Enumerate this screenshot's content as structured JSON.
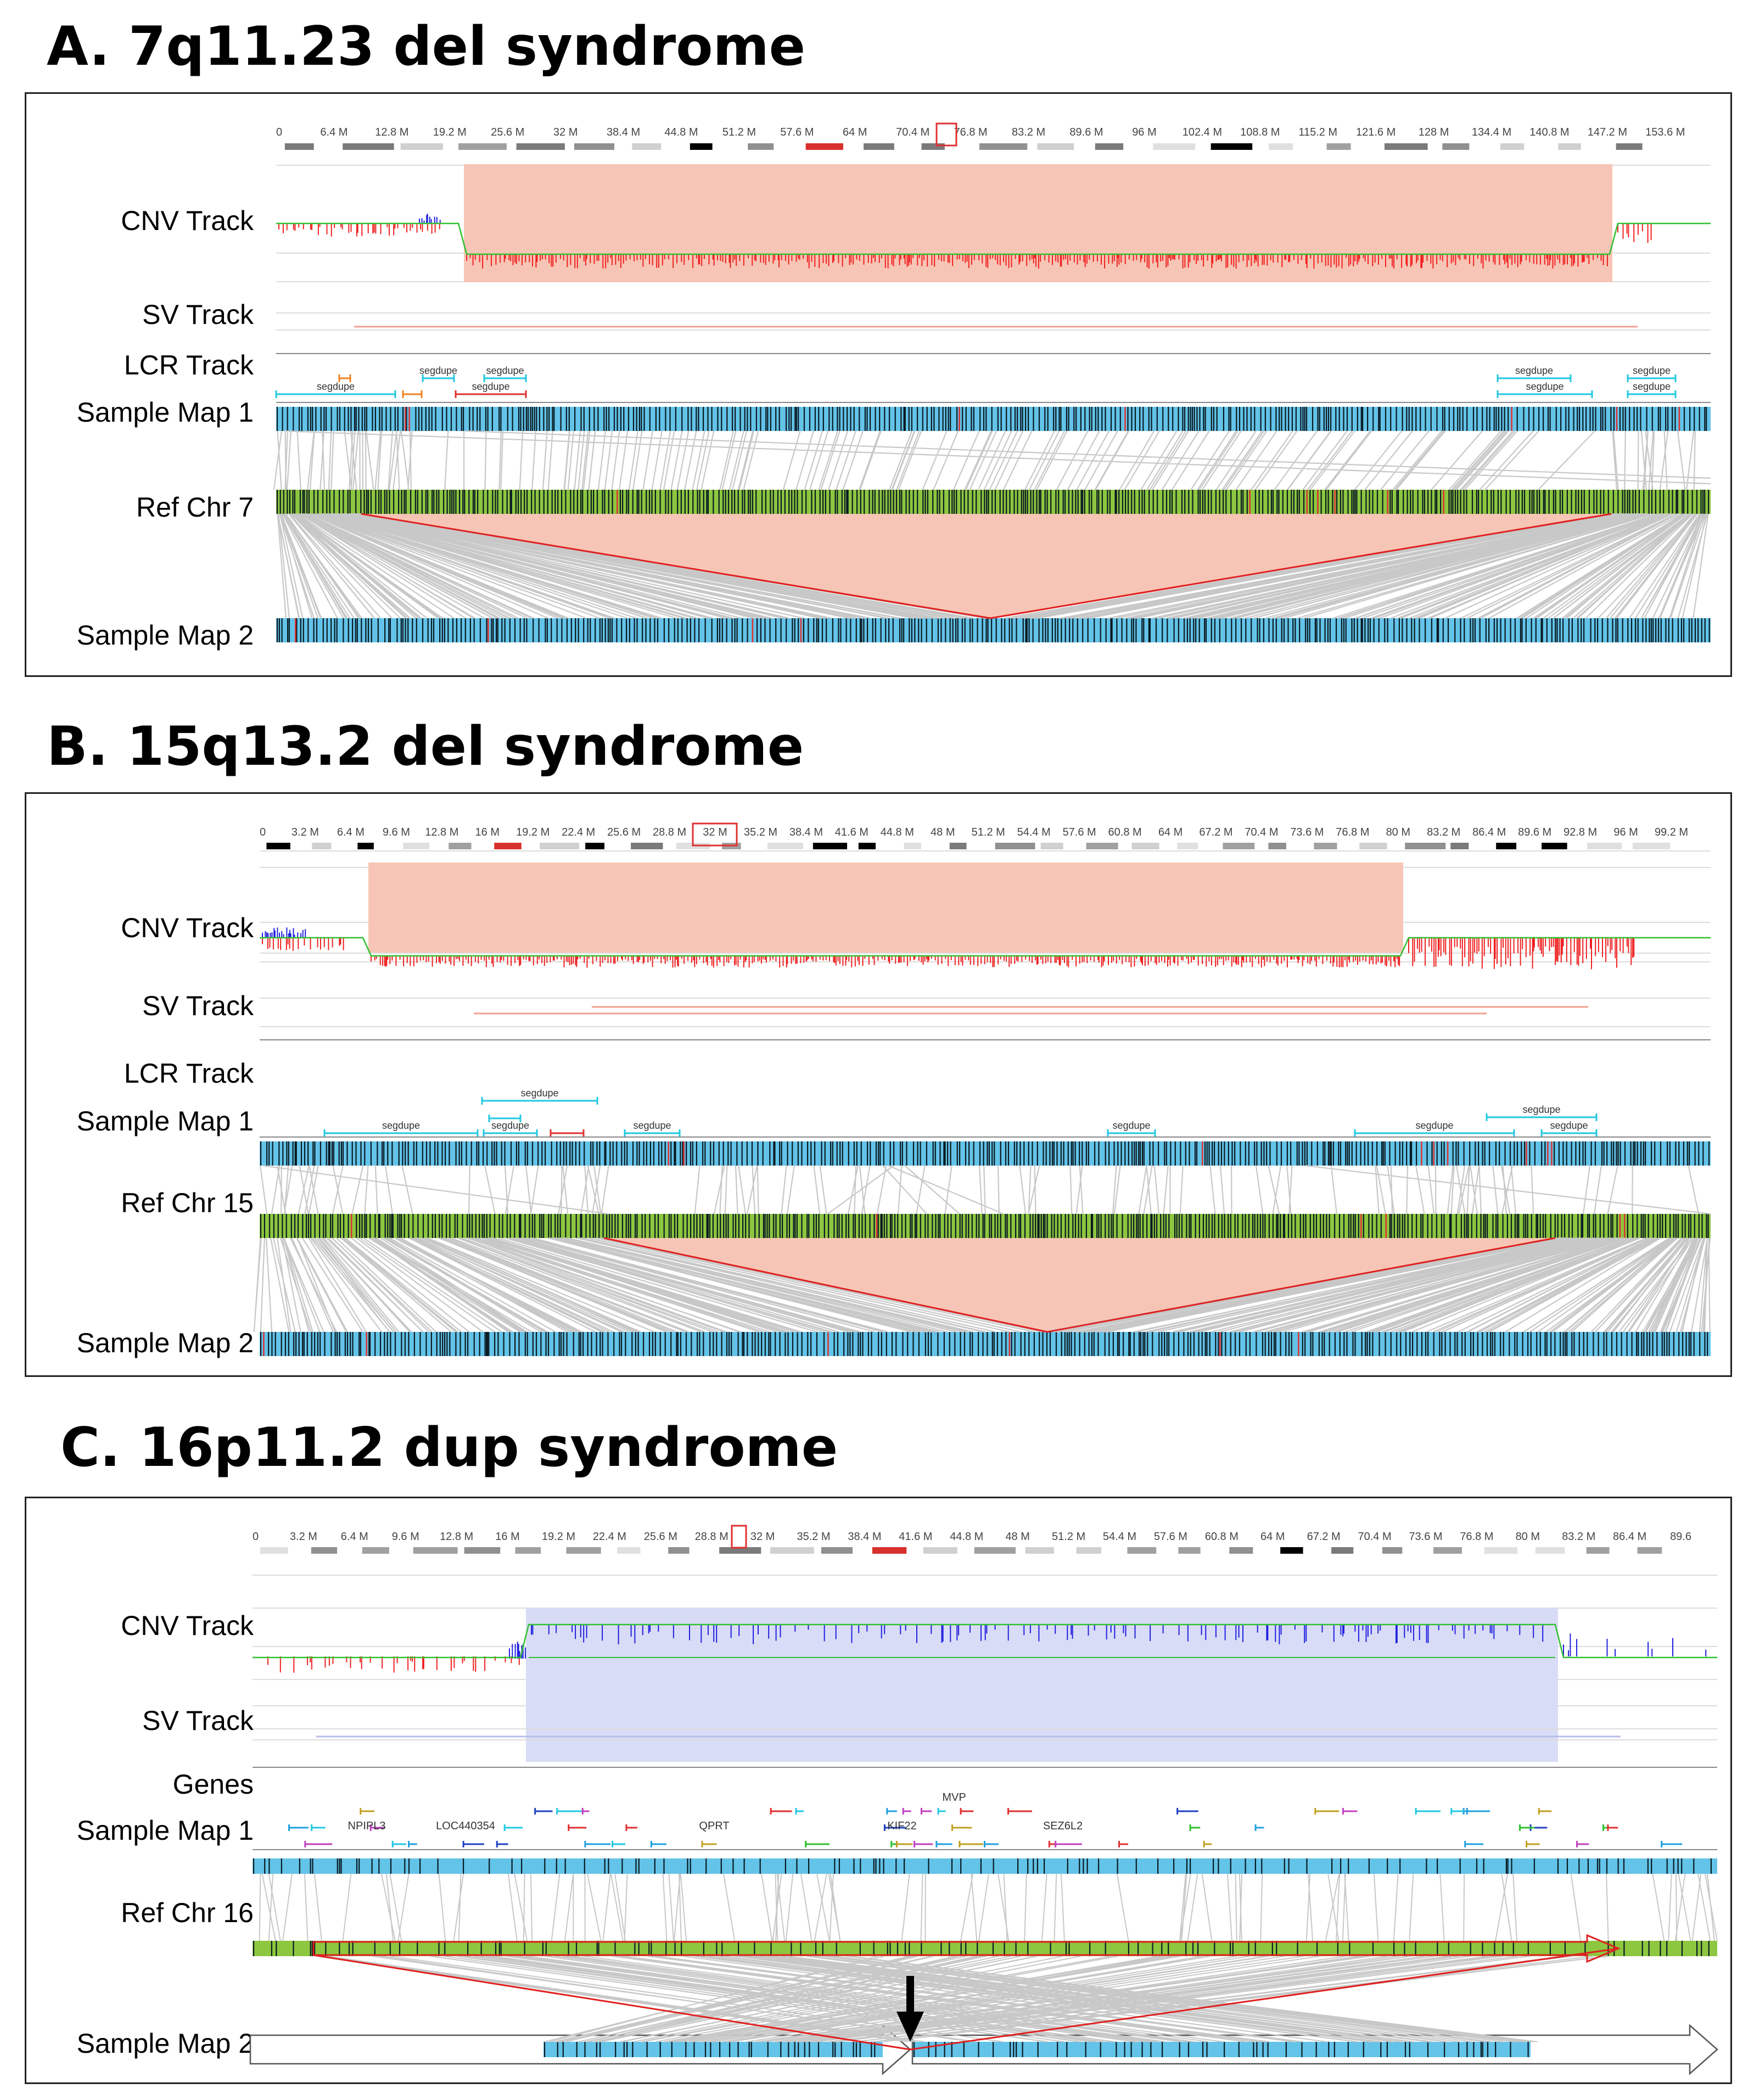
{
  "colors": {
    "cnv_loss": "#f02020",
    "cnv_gain": "#2020e0",
    "cnv_baseline": "#30c030",
    "deletion_shade": "#f7c5b5",
    "duplication_shade": "#d8dcf6",
    "map_blue": "#63c3e8",
    "ref_green": "#8dc63f",
    "alignment_gray": "#c8c8c8",
    "sv_red": "#f0a090",
    "sv_blue": "#b8bce8",
    "segdupe_cyan": "#20c8e0"
  },
  "panels": [
    {
      "title": "A. 7q11.23 del syndrome",
      "type": "deletion",
      "labels": {
        "cnv": "CNV Track",
        "sv": "SV Track",
        "lcr": "LCR Track",
        "map1": "Sample Map 1",
        "ref": "Ref Chr 7",
        "map2": "Sample Map 2"
      },
      "axis_ticks": [
        "0",
        "6.4 M",
        "12.8 M",
        "19.2 M",
        "25.6 M",
        "32 M",
        "38.4 M",
        "44.8 M",
        "51.2 M",
        "57.6 M",
        "64 M",
        "70.4 M",
        "76.8 M",
        "83.2 M",
        "89.6 M",
        "96 M",
        "102.4 M",
        "108.8 M",
        "115.2 M",
        "121.6 M",
        "128 M",
        "134.4 M",
        "140.8 M",
        "147.2 M",
        "153.6 M"
      ],
      "segdupe_label": "segdupe",
      "lcr_left_count": 4,
      "lcr_right_count": 4
    },
    {
      "title": "B. 15q13.2 del syndrome",
      "type": "deletion",
      "labels": {
        "cnv": "CNV Track",
        "sv": "SV Track",
        "lcr": "LCR Track",
        "map1": "Sample Map 1",
        "ref": "Ref Chr 15",
        "map2": "Sample Map 2"
      },
      "axis_ticks": [
        "0",
        "3.2 M",
        "6.4 M",
        "9.6 M",
        "12.8 M",
        "16 M",
        "19.2 M",
        "22.4 M",
        "25.6 M",
        "28.8 M",
        "32 M",
        "35.2 M",
        "38.4 M",
        "41.6 M",
        "44.8 M",
        "48 M",
        "51.2 M",
        "54.4 M",
        "57.6 M",
        "60.8 M",
        "64 M",
        "67.2 M",
        "70.4 M",
        "73.6 M",
        "76.8 M",
        "80 M",
        "83.2 M",
        "86.4 M",
        "89.6 M",
        "92.8 M",
        "96 M",
        "99.2 M"
      ],
      "segdupe_label": "segdupe",
      "lcr_left_count": 4,
      "lcr_right_count": 3
    },
    {
      "title": "C. 16p11.2 dup syndrome",
      "type": "duplication",
      "labels": {
        "cnv": "CNV Track",
        "sv": "SV Track",
        "genes": "Genes",
        "map1": "Sample Map 1",
        "ref": "Ref Chr 16",
        "map2": "Sample Map 2"
      },
      "axis_ticks": [
        "0",
        "3.2 M",
        "6.4 M",
        "9.6 M",
        "12.8 M",
        "16 M",
        "19.2 M",
        "22.4 M",
        "25.6 M",
        "28.8 M",
        "32 M",
        "35.2 M",
        "38.4 M",
        "41.6 M",
        "44.8 M",
        "48 M",
        "51.2 M",
        "54.4 M",
        "57.6 M",
        "60.8 M",
        "64 M",
        "67.2 M",
        "70.4 M",
        "73.6 M",
        "76.8 M",
        "80 M",
        "83.2 M",
        "86.4 M",
        "89.6"
      ],
      "gene_names": [
        "NPIPL3",
        "LOC440354",
        "QPRT",
        "MVP",
        "KIF22",
        "SEZ6L2"
      ]
    }
  ]
}
